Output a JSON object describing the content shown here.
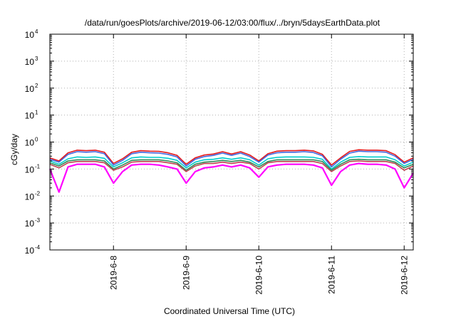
{
  "chart_data": {
    "type": "line",
    "title": "/data/run/goesPlots/archive/2019-06-12/03:00/flux/../bryn/5daysEarthData.plot",
    "xlabel": "Coordinated Universal Time (UTC)",
    "ylabel": "cGy/day",
    "yscale": "log",
    "ylim": [
      0.0001,
      10000
    ],
    "xlim": [
      "2019-06-07T03:00",
      "2019-06-12T03:00"
    ],
    "grid": true,
    "legend": "none",
    "y_ticks": [
      {
        "base": "10",
        "exp": "-4",
        "value": 0.0001
      },
      {
        "base": "10",
        "exp": "-3",
        "value": 0.001
      },
      {
        "base": "10",
        "exp": "-2",
        "value": 0.01
      },
      {
        "base": "10",
        "exp": "-1",
        "value": 0.1
      },
      {
        "base": "10",
        "exp": "0",
        "value": 1
      },
      {
        "base": "10",
        "exp": "1",
        "value": 10
      },
      {
        "base": "10",
        "exp": "2",
        "value": 100
      },
      {
        "base": "10",
        "exp": "3",
        "value": 1000
      },
      {
        "base": "10",
        "exp": "4",
        "value": 10000
      }
    ],
    "x_ticks": [
      {
        "label": "2019-6-8",
        "x": "2019-06-08T00:00"
      },
      {
        "label": "2019-6-9",
        "x": "2019-06-09T00:00"
      },
      {
        "label": "2019-6-10",
        "x": "2019-06-10T00:00"
      },
      {
        "label": "2019-6-11",
        "x": "2019-06-11T00:00"
      },
      {
        "label": "2019-6-12",
        "x": "2019-06-12T00:00"
      }
    ],
    "series_profile_note": "dose rate with daily orbital variation; values per series, sampled along the time axis",
    "samples_x": [
      "2019-06-07T03:00",
      "2019-06-07T06:00",
      "2019-06-07T09:00",
      "2019-06-07T12:00",
      "2019-06-07T15:00",
      "2019-06-07T18:00",
      "2019-06-07T21:00",
      "2019-06-08T00:00",
      "2019-06-08T03:00",
      "2019-06-08T06:00",
      "2019-06-08T09:00",
      "2019-06-08T12:00",
      "2019-06-08T15:00",
      "2019-06-08T18:00",
      "2019-06-08T21:00",
      "2019-06-09T00:00",
      "2019-06-09T03:00",
      "2019-06-09T06:00",
      "2019-06-09T09:00",
      "2019-06-09T12:00",
      "2019-06-09T15:00",
      "2019-06-09T18:00",
      "2019-06-09T21:00",
      "2019-06-10T00:00",
      "2019-06-10T03:00",
      "2019-06-10T06:00",
      "2019-06-10T09:00",
      "2019-06-10T12:00",
      "2019-06-10T15:00",
      "2019-06-10T18:00",
      "2019-06-10T21:00",
      "2019-06-11T00:00",
      "2019-06-11T03:00",
      "2019-06-11T06:00",
      "2019-06-11T09:00",
      "2019-06-11T12:00",
      "2019-06-11T15:00",
      "2019-06-11T18:00",
      "2019-06-11T21:00",
      "2019-06-12T00:00",
      "2019-06-12T03:00"
    ],
    "series": [
      {
        "color": "#e41a1c",
        "values": [
          0.26,
          0.2,
          0.4,
          0.5,
          0.48,
          0.5,
          0.42,
          0.16,
          0.24,
          0.42,
          0.48,
          0.46,
          0.45,
          0.4,
          0.32,
          0.15,
          0.26,
          0.33,
          0.36,
          0.44,
          0.36,
          0.44,
          0.33,
          0.2,
          0.37,
          0.46,
          0.48,
          0.48,
          0.5,
          0.47,
          0.35,
          0.14,
          0.26,
          0.45,
          0.52,
          0.5,
          0.5,
          0.48,
          0.34,
          0.18,
          0.26
        ]
      },
      {
        "color": "#4169e1",
        "values": [
          0.23,
          0.18,
          0.35,
          0.44,
          0.42,
          0.44,
          0.37,
          0.14,
          0.21,
          0.37,
          0.42,
          0.4,
          0.39,
          0.35,
          0.28,
          0.13,
          0.23,
          0.29,
          0.32,
          0.39,
          0.32,
          0.39,
          0.29,
          0.18,
          0.33,
          0.4,
          0.42,
          0.42,
          0.44,
          0.41,
          0.31,
          0.12,
          0.23,
          0.39,
          0.46,
          0.44,
          0.44,
          0.42,
          0.3,
          0.16,
          0.23
        ]
      },
      {
        "color": "#00cdcd",
        "values": [
          0.2,
          0.15,
          0.24,
          0.28,
          0.27,
          0.28,
          0.25,
          0.12,
          0.17,
          0.26,
          0.28,
          0.27,
          0.27,
          0.25,
          0.21,
          0.11,
          0.18,
          0.22,
          0.23,
          0.26,
          0.23,
          0.26,
          0.22,
          0.14,
          0.24,
          0.27,
          0.28,
          0.28,
          0.28,
          0.27,
          0.23,
          0.1,
          0.18,
          0.27,
          0.29,
          0.28,
          0.28,
          0.28,
          0.22,
          0.13,
          0.18
        ]
      },
      {
        "color": "#2e8b57",
        "values": [
          0.17,
          0.13,
          0.2,
          0.22,
          0.22,
          0.22,
          0.2,
          0.1,
          0.14,
          0.21,
          0.22,
          0.22,
          0.22,
          0.2,
          0.17,
          0.09,
          0.15,
          0.18,
          0.19,
          0.21,
          0.19,
          0.21,
          0.18,
          0.12,
          0.19,
          0.22,
          0.22,
          0.22,
          0.22,
          0.22,
          0.19,
          0.09,
          0.15,
          0.22,
          0.23,
          0.22,
          0.22,
          0.22,
          0.18,
          0.11,
          0.15
        ]
      },
      {
        "color": "#c04050",
        "values": [
          0.15,
          0.11,
          0.17,
          0.19,
          0.19,
          0.19,
          0.17,
          0.09,
          0.12,
          0.18,
          0.19,
          0.19,
          0.19,
          0.17,
          0.15,
          0.08,
          0.13,
          0.16,
          0.16,
          0.18,
          0.16,
          0.18,
          0.16,
          0.1,
          0.17,
          0.19,
          0.19,
          0.19,
          0.19,
          0.19,
          0.16,
          0.08,
          0.13,
          0.19,
          0.2,
          0.19,
          0.19,
          0.19,
          0.16,
          0.09,
          0.13
        ]
      },
      {
        "color": "#ff00ff",
        "values": [
          0.1,
          0.014,
          0.12,
          0.15,
          0.15,
          0.15,
          0.12,
          0.03,
          0.08,
          0.14,
          0.15,
          0.15,
          0.14,
          0.12,
          0.1,
          0.03,
          0.08,
          0.11,
          0.12,
          0.14,
          0.12,
          0.14,
          0.11,
          0.05,
          0.12,
          0.14,
          0.15,
          0.15,
          0.15,
          0.14,
          0.11,
          0.025,
          0.08,
          0.14,
          0.16,
          0.15,
          0.15,
          0.14,
          0.1,
          0.02,
          0.07
        ]
      }
    ]
  }
}
